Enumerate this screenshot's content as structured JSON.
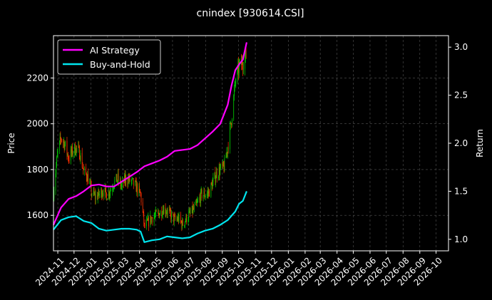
{
  "chart_data": {
    "type": "line",
    "title": "cnindex [930614.CSI]",
    "xlabel": "",
    "ylabel_left": "Price",
    "ylabel_right": "Return",
    "x_range": [
      "2024-10-24",
      "2026-10-24"
    ],
    "ylim_left": [
      1445,
      2385
    ],
    "ylim_right": [
      0.88,
      3.12
    ],
    "grid": true,
    "legend_position": "top-left",
    "x_ticks": [
      "2024-11",
      "2024-12",
      "2025-01",
      "2025-02",
      "2025-03",
      "2025-04",
      "2025-05",
      "2025-06",
      "2025-07",
      "2025-08",
      "2025-09",
      "2025-10",
      "2025-11",
      "2025-12",
      "2026-01",
      "2026-02",
      "2026-03",
      "2026-04",
      "2026-05",
      "2026-06",
      "2026-07",
      "2026-08",
      "2026-09",
      "2026-10"
    ],
    "y_ticks_left": [
      1600,
      1800,
      2000,
      2200
    ],
    "y_ticks_right": [
      1.0,
      1.5,
      2.0,
      2.5,
      3.0
    ],
    "colors": {
      "up": "#00cc00",
      "down": "#ff3300",
      "ai_strategy": "#ff00ff",
      "buy_and_hold": "#00e5ee",
      "grid": "#555555",
      "background": "#000000"
    },
    "price_series": {
      "name": "Price",
      "points": [
        [
          "2024-10-24",
          1700
        ],
        [
          "2024-10-31",
          1860
        ],
        [
          "2024-11-07",
          1940
        ],
        [
          "2024-11-14",
          1910
        ],
        [
          "2024-11-21",
          1850
        ],
        [
          "2024-11-28",
          1880
        ],
        [
          "2024-12-05",
          1895
        ],
        [
          "2024-12-12",
          1870
        ],
        [
          "2024-12-19",
          1790
        ],
        [
          "2024-12-26",
          1770
        ],
        [
          "2025-01-02",
          1700
        ],
        [
          "2025-01-09",
          1680
        ],
        [
          "2025-01-16",
          1690
        ],
        [
          "2025-01-23",
          1710
        ],
        [
          "2025-01-30",
          1690
        ],
        [
          "2025-02-06",
          1710
        ],
        [
          "2025-02-13",
          1745
        ],
        [
          "2025-02-20",
          1760
        ],
        [
          "2025-02-27",
          1725
        ],
        [
          "2025-03-06",
          1760
        ],
        [
          "2025-03-13",
          1755
        ],
        [
          "2025-03-20",
          1740
        ],
        [
          "2025-03-27",
          1720
        ],
        [
          "2025-04-03",
          1690
        ],
        [
          "2025-04-10",
          1550
        ],
        [
          "2025-04-17",
          1570
        ],
        [
          "2025-04-24",
          1590
        ],
        [
          "2025-05-01",
          1600
        ],
        [
          "2025-05-08",
          1610
        ],
        [
          "2025-05-15",
          1630
        ],
        [
          "2025-05-22",
          1620
        ],
        [
          "2025-05-29",
          1600
        ],
        [
          "2025-06-05",
          1580
        ],
        [
          "2025-06-12",
          1585
        ],
        [
          "2025-06-19",
          1560
        ],
        [
          "2025-06-26",
          1585
        ],
        [
          "2025-07-03",
          1605
        ],
        [
          "2025-07-10",
          1625
        ],
        [
          "2025-07-17",
          1650
        ],
        [
          "2025-07-24",
          1690
        ],
        [
          "2025-07-31",
          1690
        ],
        [
          "2025-08-07",
          1700
        ],
        [
          "2025-08-14",
          1740
        ],
        [
          "2025-08-21",
          1780
        ],
        [
          "2025-08-28",
          1800
        ],
        [
          "2025-09-04",
          1810
        ],
        [
          "2025-09-11",
          1900
        ],
        [
          "2025-09-18",
          2020
        ],
        [
          "2025-09-25",
          2180
        ],
        [
          "2025-10-02",
          2250
        ],
        [
          "2025-10-09",
          2270
        ],
        [
          "2025-10-16",
          2300
        ]
      ]
    },
    "series": [
      {
        "name": "AI Strategy",
        "points": [
          [
            "2024-10-24",
            1.15
          ],
          [
            "2024-11-07",
            1.33
          ],
          [
            "2024-11-21",
            1.42
          ],
          [
            "2024-12-05",
            1.45
          ],
          [
            "2024-12-19",
            1.5
          ],
          [
            "2025-01-02",
            1.56
          ],
          [
            "2025-01-16",
            1.57
          ],
          [
            "2025-01-30",
            1.55
          ],
          [
            "2025-02-13",
            1.55
          ],
          [
            "2025-02-27",
            1.6
          ],
          [
            "2025-03-13",
            1.65
          ],
          [
            "2025-03-27",
            1.7
          ],
          [
            "2025-04-10",
            1.76
          ],
          [
            "2025-04-24",
            1.79
          ],
          [
            "2025-05-08",
            1.82
          ],
          [
            "2025-05-22",
            1.86
          ],
          [
            "2025-06-05",
            1.92
          ],
          [
            "2025-06-19",
            1.93
          ],
          [
            "2025-07-03",
            1.94
          ],
          [
            "2025-07-17",
            1.98
          ],
          [
            "2025-07-31",
            2.05
          ],
          [
            "2025-08-14",
            2.12
          ],
          [
            "2025-08-28",
            2.2
          ],
          [
            "2025-09-11",
            2.4
          ],
          [
            "2025-09-18",
            2.6
          ],
          [
            "2025-09-25",
            2.76
          ],
          [
            "2025-10-02",
            2.82
          ],
          [
            "2025-10-09",
            2.87
          ],
          [
            "2025-10-16",
            3.05
          ]
        ]
      },
      {
        "name": "Buy-and-Hold",
        "points": [
          [
            "2024-10-24",
            1.1
          ],
          [
            "2024-11-07",
            1.2
          ],
          [
            "2024-11-21",
            1.23
          ],
          [
            "2024-12-05",
            1.24
          ],
          [
            "2024-12-19",
            1.19
          ],
          [
            "2025-01-02",
            1.17
          ],
          [
            "2025-01-16",
            1.11
          ],
          [
            "2025-01-30",
            1.09
          ],
          [
            "2025-02-13",
            1.1
          ],
          [
            "2025-02-27",
            1.11
          ],
          [
            "2025-03-13",
            1.11
          ],
          [
            "2025-03-27",
            1.1
          ],
          [
            "2025-04-03",
            1.08
          ],
          [
            "2025-04-10",
            0.97
          ],
          [
            "2025-04-24",
            0.99
          ],
          [
            "2025-05-08",
            1.0
          ],
          [
            "2025-05-22",
            1.03
          ],
          [
            "2025-06-05",
            1.02
          ],
          [
            "2025-06-19",
            1.01
          ],
          [
            "2025-07-03",
            1.02
          ],
          [
            "2025-07-17",
            1.06
          ],
          [
            "2025-07-31",
            1.09
          ],
          [
            "2025-08-14",
            1.11
          ],
          [
            "2025-08-28",
            1.15
          ],
          [
            "2025-09-11",
            1.2
          ],
          [
            "2025-09-25",
            1.29
          ],
          [
            "2025-10-02",
            1.37
          ],
          [
            "2025-10-09",
            1.4
          ],
          [
            "2025-10-16",
            1.5
          ]
        ]
      }
    ]
  }
}
